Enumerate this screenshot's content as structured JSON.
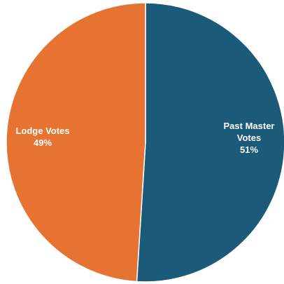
{
  "chart_data": {
    "type": "pie",
    "slices": [
      {
        "label_lines": [
          "Past Master",
          "Votes"
        ],
        "percent_label": "51%",
        "value": 51,
        "color": "#1b5a79"
      },
      {
        "label_lines": [
          "Lodge Votes"
        ],
        "percent_label": "49%",
        "value": 49,
        "color": "#e67332"
      }
    ],
    "title": "",
    "legend": "none",
    "start_angle": "12 o'clock",
    "direction": "clockwise",
    "slice_border_color": "#ffffff"
  }
}
